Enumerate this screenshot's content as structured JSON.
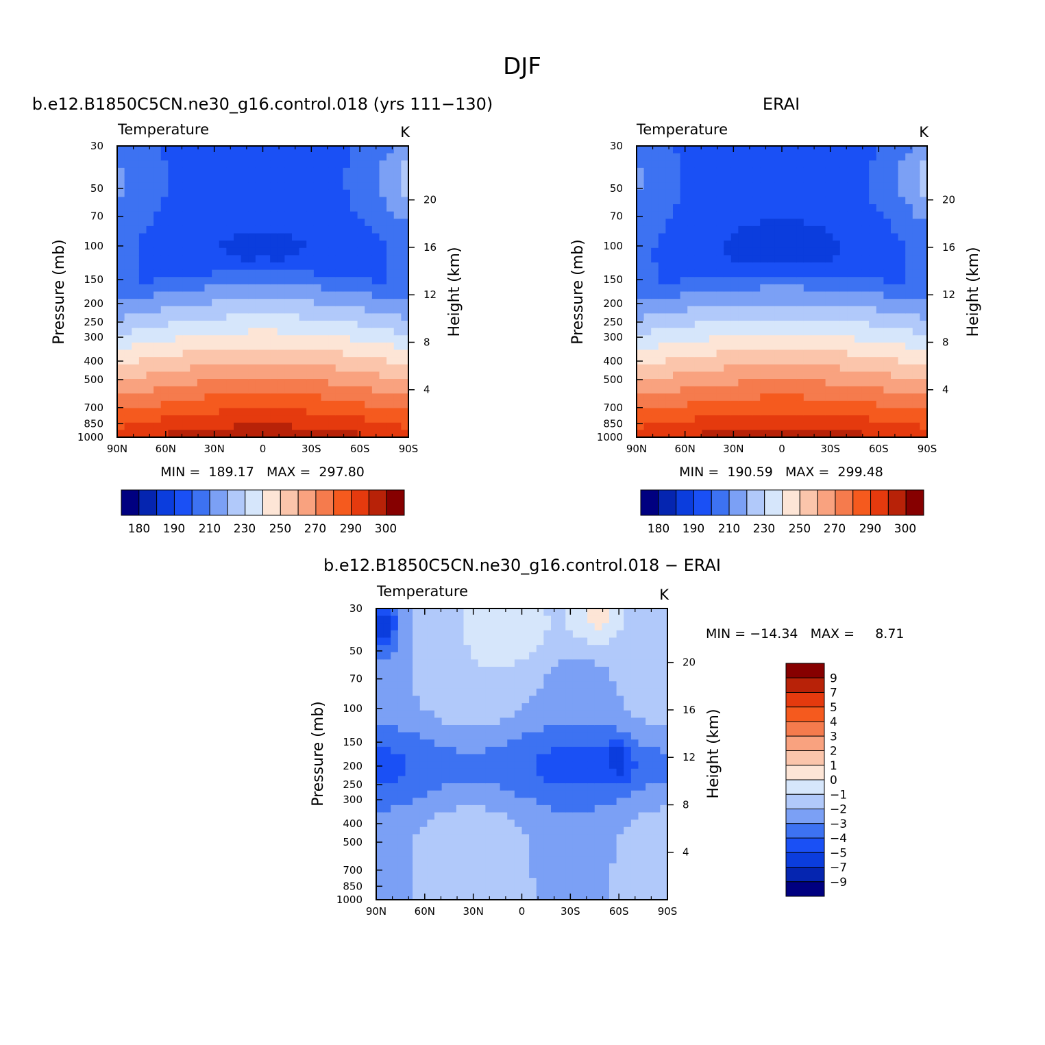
{
  "figure_title": "DJF",
  "chart_data": [
    {
      "type": "heatmap",
      "title": "b.e12.B1850C5CN.ne30_g16.control.018 (yrs 111−130)",
      "left_string": "Temperature",
      "right_string": "K",
      "ylabel": "Pressure (mb)",
      "ylabel_right": "Height (km)",
      "x_ticks": [
        "90N",
        "60N",
        "30N",
        "0",
        "30S",
        "60S",
        "90S"
      ],
      "y_ticks": [
        "30",
        "50",
        "70",
        "100",
        "150",
        "200",
        "250",
        "300",
        "400",
        "500",
        "700",
        "850",
        "1000"
      ],
      "y_ticks_right": [
        "20",
        "16",
        "12",
        "8",
        "4"
      ],
      "stats_text": "MIN =  189.17   MAX =  297.80",
      "stats": {
        "min": 189.17,
        "max": 297.8
      },
      "colorbar_labels": [
        "180",
        "190",
        "210",
        "230",
        "250",
        "270",
        "290",
        "300"
      ],
      "field": {
        "kind": "abs",
        "tmin": 189.17,
        "tmax": 297.8,
        "cold": 0
      }
    },
    {
      "type": "heatmap",
      "title": "ERAI",
      "left_string": "Temperature",
      "right_string": "K",
      "ylabel": "Pressure (mb)",
      "ylabel_right": "Height (km)",
      "x_ticks": [
        "90N",
        "60N",
        "30N",
        "0",
        "30S",
        "60S",
        "90S"
      ],
      "y_ticks": [
        "30",
        "50",
        "70",
        "100",
        "150",
        "200",
        "250",
        "300",
        "400",
        "500",
        "700",
        "850",
        "1000"
      ],
      "y_ticks_right": [
        "20",
        "16",
        "12",
        "8",
        "4"
      ],
      "stats_text": "MIN =  190.59   MAX =  299.48",
      "stats": {
        "min": 190.59,
        "max": 299.48
      },
      "colorbar_labels": [
        "180",
        "190",
        "210",
        "230",
        "250",
        "270",
        "290",
        "300"
      ],
      "field": {
        "kind": "abs",
        "tmin": 190.59,
        "tmax": 299.48,
        "cold": 1
      }
    },
    {
      "type": "heatmap",
      "title": "b.e12.B1850C5CN.ne30_g16.control.018 − ERAI",
      "left_string": "Temperature",
      "right_string": "K",
      "ylabel": "Pressure (mb)",
      "ylabel_right": "Height (km)",
      "x_ticks": [
        "90N",
        "60N",
        "30N",
        "0",
        "30S",
        "60S",
        "90S"
      ],
      "y_ticks": [
        "30",
        "50",
        "70",
        "100",
        "150",
        "200",
        "250",
        "300",
        "400",
        "500",
        "700",
        "850",
        "1000"
      ],
      "y_ticks_right": [
        "20",
        "16",
        "12",
        "8",
        "4"
      ],
      "stats_text": "MIN = −14.34   MAX =     8.71",
      "stats": {
        "min": -14.34,
        "max": 8.71
      },
      "colorbar_labels": [
        "9",
        "7",
        "5",
        "4",
        "3",
        "2",
        "1",
        "0",
        "−1",
        "−2",
        "−3",
        "−4",
        "−5",
        "−7",
        "−9"
      ],
      "field": {
        "kind": "diff"
      }
    }
  ],
  "colors": {
    "abs_palette": [
      "#000080",
      "#0525b0",
      "#0b3ddd",
      "#1a50f5",
      "#3d72f2",
      "#7ba0f5",
      "#b1c9fa",
      "#d6e6fb",
      "#fde5d6",
      "#fbc5ab",
      "#f9a27f",
      "#f57b4d",
      "#f55a1e",
      "#e53a0e",
      "#b82208",
      "#860000"
    ],
    "diff_palette": [
      "#000080",
      "#0525b0",
      "#0b3ddd",
      "#1a50f5",
      "#3d72f2",
      "#7ba0f5",
      "#b1c9fa",
      "#d6e6fb",
      "#fde5d6",
      "#fbc5ab",
      "#f9a27f",
      "#f57b4d",
      "#f55a1e",
      "#e53a0e",
      "#b82208",
      "#860000"
    ]
  }
}
